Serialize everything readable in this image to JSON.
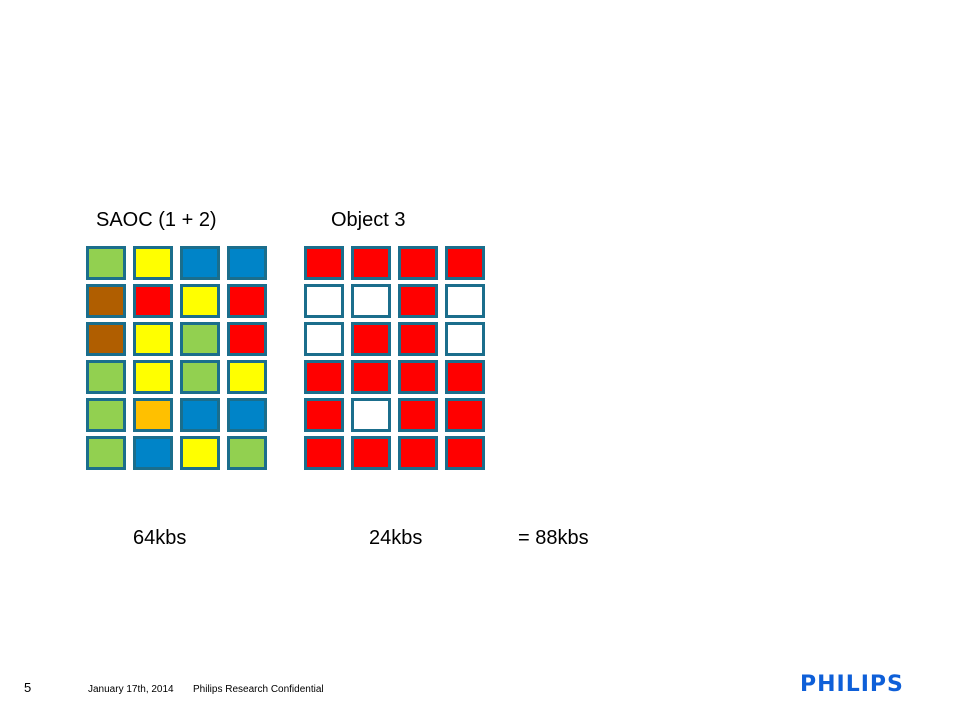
{
  "labels": {
    "group1": "SAOC (1 + 2)",
    "group2": "Object 3",
    "rate1": "64kbs",
    "rate2": "24kbs",
    "total": "= 88kbs"
  },
  "palette": {
    "green": "#92d050",
    "yellow": "#ffff00",
    "blue": "#0084c8",
    "brown": "#b05e00",
    "red": "#ff0000",
    "orange": "#ffc000",
    "white": "#ffffff",
    "border": "#1b6e8c"
  },
  "grid1": [
    [
      "green",
      "yellow",
      "blue",
      "blue"
    ],
    [
      "brown",
      "red",
      "yellow",
      "red"
    ],
    [
      "brown",
      "yellow",
      "green",
      "red"
    ],
    [
      "green",
      "yellow",
      "green",
      "yellow"
    ],
    [
      "green",
      "orange",
      "blue",
      "blue"
    ],
    [
      "green",
      "blue",
      "yellow",
      "green"
    ]
  ],
  "grid2": [
    [
      "red",
      "red",
      "red",
      "red"
    ],
    [
      "white",
      "white",
      "red",
      "white"
    ],
    [
      "white",
      "red",
      "red",
      "white"
    ],
    [
      "red",
      "red",
      "red",
      "red"
    ],
    [
      "red",
      "white",
      "red",
      "red"
    ],
    [
      "red",
      "red",
      "red",
      "red"
    ]
  ],
  "footer": {
    "page_number": "5",
    "date": "January 17th, 2014",
    "confidential": "Philips Research Confidential"
  },
  "logo": {
    "text": "PHILIPS"
  }
}
